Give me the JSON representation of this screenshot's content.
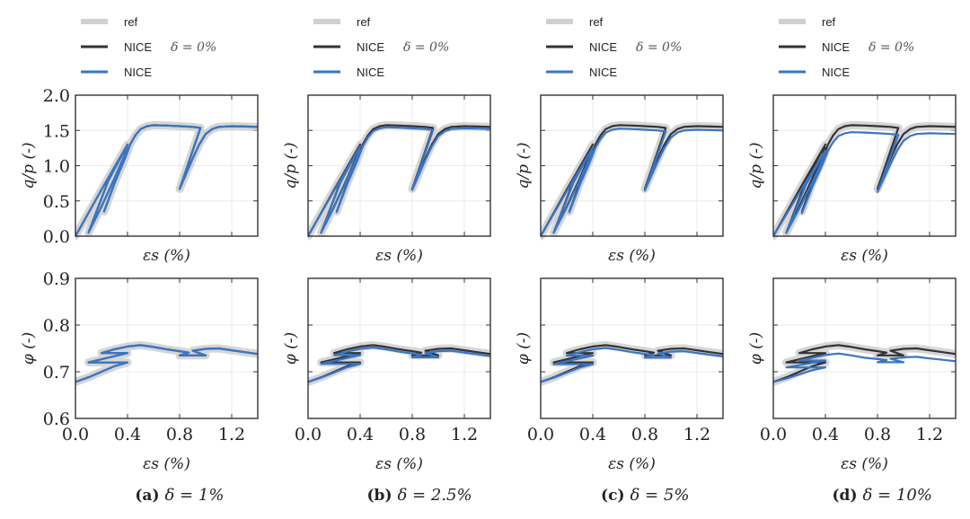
{
  "figure": {
    "legend": {
      "entries": [
        {
          "key": "ref",
          "label": "ref",
          "color": "#cccccc"
        },
        {
          "key": "nice0",
          "label": "NICE",
          "suffix": "δ = 0%",
          "color": "#333333"
        },
        {
          "key": "nice",
          "label": "NICE",
          "color": "#3a75c4"
        }
      ]
    }
  },
  "chart_data": [
    {
      "panel": "a",
      "caption_label": "(a)",
      "caption_text": "δ = 1%",
      "delta_percent": 1,
      "top": {
        "type": "line",
        "xlabel": "εs (%)",
        "ylabel": "q/p (-)",
        "ylim": [
          0.0,
          2.0
        ],
        "xlim": [
          0.0,
          1.4
        ],
        "yticks": [
          "0.0",
          "0.5",
          "1.0",
          "1.5",
          "2.0"
        ],
        "xticks_values": [
          0.0,
          0.4,
          0.8,
          1.2
        ],
        "grid": true,
        "nice_offset": 0.0
      },
      "bottom": {
        "type": "line",
        "xlabel": "εs (%)",
        "ylabel": "φ (-)",
        "ylim": [
          0.6,
          0.9
        ],
        "xlim": [
          0.0,
          1.4
        ],
        "yticks": [
          "0.6",
          "0.7",
          "0.8",
          "0.9"
        ],
        "xticks": [
          "0.0",
          "0.4",
          "0.8",
          "1.2"
        ],
        "grid": true,
        "nice_offset": 0.0
      }
    },
    {
      "panel": "b",
      "caption_label": "(b)",
      "caption_text": "δ = 2.5%",
      "delta_percent": 2.5,
      "top": {
        "type": "line",
        "xlabel": "εs (%)",
        "ylabel": "q/p (-)",
        "ylim": [
          0.0,
          2.0
        ],
        "xlim": [
          0.0,
          1.4
        ],
        "grid": true,
        "nice_offset": 0.03
      },
      "bottom": {
        "type": "line",
        "xlabel": "εs (%)",
        "ylabel": "φ (-)",
        "ylim": [
          0.6,
          0.9
        ],
        "xlim": [
          0.0,
          1.4
        ],
        "xticks": [
          "0.0",
          "0.4",
          "0.8",
          "1.2"
        ],
        "grid": true,
        "nice_offset": 0.005
      }
    },
    {
      "panel": "c",
      "caption_label": "(c)",
      "caption_text": "δ = 5%",
      "delta_percent": 5,
      "top": {
        "type": "line",
        "xlabel": "εs (%)",
        "ylabel": "q/p (-)",
        "ylim": [
          0.0,
          2.0
        ],
        "xlim": [
          0.0,
          1.4
        ],
        "grid": true,
        "nice_offset": 0.05
      },
      "bottom": {
        "type": "line",
        "xlabel": "εs (%)",
        "ylabel": "φ (-)",
        "ylim": [
          0.6,
          0.9
        ],
        "xlim": [
          0.0,
          1.4
        ],
        "xticks": [
          "0.0",
          "0.4",
          "0.8",
          "1.2"
        ],
        "grid": true,
        "nice_offset": 0.006
      }
    },
    {
      "panel": "d",
      "caption_label": "(d)",
      "caption_text": "δ = 10%",
      "delta_percent": 10,
      "top": {
        "type": "line",
        "xlabel": "εs (%)",
        "ylabel": "q/p (-)",
        "ylim": [
          0.0,
          2.0
        ],
        "xlim": [
          0.0,
          1.4
        ],
        "grid": true,
        "nice_offset": 0.1
      },
      "bottom": {
        "type": "line",
        "xlabel": "εs (%)",
        "ylabel": "φ (-)",
        "ylim": [
          0.6,
          0.9
        ],
        "xlim": [
          0.0,
          1.4
        ],
        "xticks": [
          "0.0",
          "0.4",
          "0.8",
          "1.2"
        ],
        "grid": true,
        "nice_offset": 0.018
      }
    }
  ],
  "series_paths": {
    "qp_ref": [
      [
        0.0,
        0.0
      ],
      [
        0.1,
        0.33
      ],
      [
        0.2,
        0.66
      ],
      [
        0.3,
        0.98
      ],
      [
        0.4,
        1.3
      ],
      [
        0.25,
        0.78
      ],
      [
        0.1,
        0.05
      ],
      [
        0.2,
        0.42
      ],
      [
        0.3,
        0.82
      ],
      [
        0.4,
        1.25
      ],
      [
        0.22,
        0.35
      ],
      [
        0.3,
        0.75
      ],
      [
        0.38,
        1.1
      ],
      [
        0.42,
        1.3
      ],
      [
        0.46,
        1.43
      ],
      [
        0.5,
        1.52
      ],
      [
        0.55,
        1.56
      ],
      [
        0.6,
        1.575
      ],
      [
        0.7,
        1.57
      ],
      [
        0.8,
        1.56
      ],
      [
        0.9,
        1.55
      ],
      [
        0.96,
        1.535
      ],
      [
        0.8,
        0.67
      ],
      [
        0.9,
        1.1
      ],
      [
        0.95,
        1.3
      ],
      [
        1.0,
        1.45
      ],
      [
        1.05,
        1.52
      ],
      [
        1.1,
        1.55
      ],
      [
        1.2,
        1.56
      ],
      [
        1.3,
        1.555
      ],
      [
        1.4,
        1.55
      ]
    ],
    "phi_ref": [
      [
        0.0,
        0.678
      ],
      [
        0.1,
        0.688
      ],
      [
        0.2,
        0.7
      ],
      [
        0.3,
        0.712
      ],
      [
        0.4,
        0.72
      ],
      [
        0.1,
        0.72
      ],
      [
        0.4,
        0.74
      ],
      [
        0.2,
        0.74
      ],
      [
        0.3,
        0.748
      ],
      [
        0.4,
        0.754
      ],
      [
        0.5,
        0.757
      ],
      [
        0.6,
        0.753
      ],
      [
        0.7,
        0.748
      ],
      [
        0.8,
        0.744
      ],
      [
        0.87,
        0.741
      ],
      [
        0.8,
        0.735
      ],
      [
        1.0,
        0.735
      ],
      [
        0.9,
        0.745
      ],
      [
        1.0,
        0.749
      ],
      [
        1.1,
        0.75
      ],
      [
        1.2,
        0.746
      ],
      [
        1.3,
        0.742
      ],
      [
        1.4,
        0.738
      ]
    ]
  },
  "captions": {
    "a": {
      "label": "(a)",
      "text": "δ = 1%"
    },
    "b": {
      "label": "(b)",
      "text": "δ = 2.5%"
    },
    "c": {
      "label": "(c)",
      "text": "δ = 5%"
    },
    "d": {
      "label": "(d)",
      "text": "δ = 10%"
    }
  }
}
